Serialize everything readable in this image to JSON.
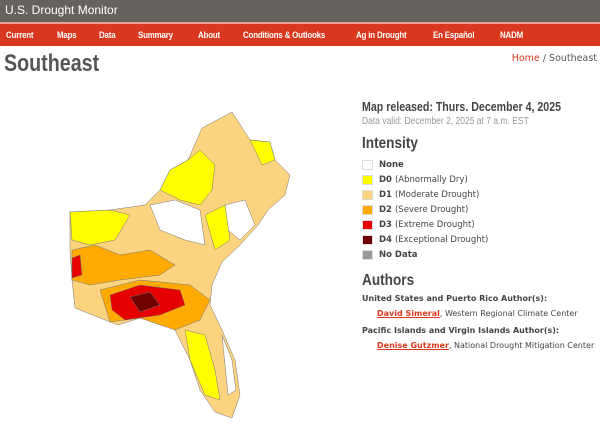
{
  "site_title": "U.S. Drought Monitor",
  "nav": [
    "Current",
    "Maps",
    "Data",
    "Summary",
    "About",
    "Conditions & Outlooks",
    "Ag in Drought",
    "En Español",
    "NADM"
  ],
  "page_title": "Southeast",
  "breadcrumb": {
    "home": "Home",
    "separator": "/",
    "current": "Southeast"
  },
  "map_released": "Map released: Thurs. December 4, 2025",
  "data_valid": "Data valid: December 2, 2025 at 7 a.m. EST",
  "intensity": {
    "heading": "Intensity",
    "items": [
      {
        "code": "None",
        "desc": "",
        "color": "#ffffff"
      },
      {
        "code": "D0",
        "desc": "(Abnormally Dry)",
        "color": "#ffff00"
      },
      {
        "code": "D1",
        "desc": "(Moderate Drought)",
        "color": "#fcd37f"
      },
      {
        "code": "D2",
        "desc": "(Severe Drought)",
        "color": "#ffaa00"
      },
      {
        "code": "D3",
        "desc": "(Extreme Drought)",
        "color": "#e60000"
      },
      {
        "code": "D4",
        "desc": "(Exceptional Drought)",
        "color": "#730000"
      },
      {
        "code": "No Data",
        "desc": "",
        "color": "#9b9b9b"
      }
    ]
  },
  "authors": {
    "heading": "Authors",
    "groups": [
      {
        "label": "United States and Puerto Rico Author(s):",
        "name": "David Simeral",
        "org": ", Western Regional Climate Center"
      },
      {
        "label": "Pacific Islands and Virgin Islands Author(s):",
        "name": "Denise Gutzmer",
        "org": ", National Drought Mitigation Center"
      }
    ]
  }
}
